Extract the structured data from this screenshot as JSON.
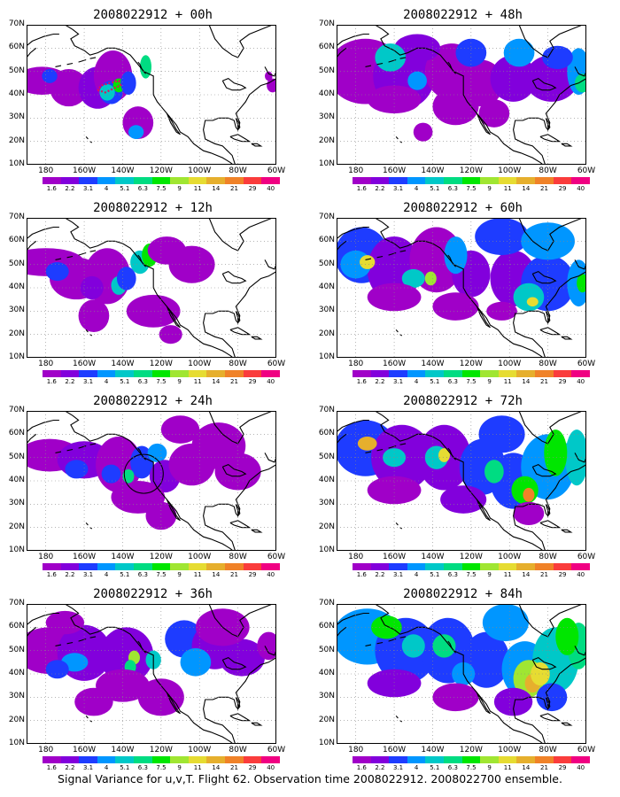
{
  "panels": [
    {
      "title": "2008022912 + 00h",
      "lead": "00h"
    },
    {
      "title": "2008022912 + 48h",
      "lead": "48h"
    },
    {
      "title": "2008022912 + 12h",
      "lead": "12h"
    },
    {
      "title": "2008022912 + 60h",
      "lead": "60h"
    },
    {
      "title": "2008022912 + 24h",
      "lead": "24h"
    },
    {
      "title": "2008022912 + 72h",
      "lead": "72h"
    },
    {
      "title": "2008022912 + 36h",
      "lead": "36h"
    },
    {
      "title": "2008022912 + 84h",
      "lead": "84h"
    }
  ],
  "lat_labels": [
    "70N",
    "60N",
    "50N",
    "40N",
    "30N",
    "20N",
    "10N"
  ],
  "lon_labels": [
    "180",
    "160W",
    "140W",
    "120W",
    "100W",
    "80W",
    "60W"
  ],
  "colorbar": {
    "labels": [
      "1.6",
      "2.2",
      "3.1",
      "4",
      "5.1",
      "6.3",
      "7.5",
      "9",
      "11",
      "14",
      "21",
      "29",
      "40"
    ],
    "colors": [
      "#a000c8",
      "#8200dc",
      "#1e3cff",
      "#0096ff",
      "#00c8c8",
      "#00dc82",
      "#00e600",
      "#a0e632",
      "#e6dc32",
      "#e6af2d",
      "#f08228",
      "#fa3c3c",
      "#f00082"
    ]
  },
  "caption": "Signal Variance for u,v,T. Flight 62. Observation time 2008022912. 2008022700 ensemble.",
  "map_extent": {
    "lon_west": 170,
    "lon_east": -60,
    "lat_south": 10,
    "lat_north": 70
  },
  "annotations": {
    "panel_00h_dotted_box_color": "#e0105a",
    "panel_24h_circle_color": "#000000"
  }
}
